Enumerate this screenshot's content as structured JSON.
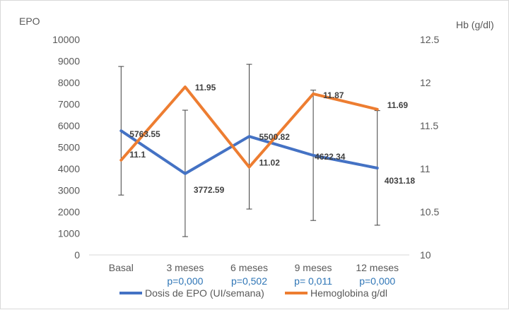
{
  "chart_data": {
    "type": "line",
    "categories": [
      "Basal",
      "3 meses",
      "6 meses",
      "9 meses",
      "12 meses"
    ],
    "p_values": [
      "",
      "p=0,000",
      "p=0,502",
      "p= 0,011",
      "p=0,000"
    ],
    "left_axis": {
      "label": "EPO",
      "min": 0,
      "max": 10000,
      "step": 1000,
      "ticks": [
        "0",
        "1000",
        "2000",
        "3000",
        "4000",
        "5000",
        "6000",
        "7000",
        "8000",
        "9000",
        "10000"
      ]
    },
    "right_axis": {
      "label": "Hb (g/dl)",
      "min": 10,
      "max": 12.5,
      "step": 0.5,
      "ticks": [
        "10",
        "10.5",
        "11",
        "11.5",
        "12",
        "12.5"
      ]
    },
    "series": [
      {
        "name": "Dosis de EPO (UI/semana)",
        "axis": "left",
        "color": "#4472c4",
        "values": [
          5763.55,
          3772.59,
          5500.82,
          4622.34,
          4031.18
        ],
        "labels": [
          "5763.55",
          "3772.59",
          "5500.82",
          "4622.34",
          "4031.18"
        ],
        "error_low": [
          2780,
          850,
          2130,
          1600,
          1380
        ],
        "error_high": [
          8750,
          6720,
          8850,
          7650,
          6700
        ]
      },
      {
        "name": "Hemoglobina g/dl",
        "axis": "right",
        "color": "#ed7d31",
        "values": [
          11.1,
          11.95,
          11.02,
          11.87,
          11.69
        ],
        "labels": [
          "11.1",
          "11.95",
          "11.02",
          "11.87",
          "11.69"
        ]
      }
    ],
    "grid": false,
    "legend_position": "bottom"
  }
}
